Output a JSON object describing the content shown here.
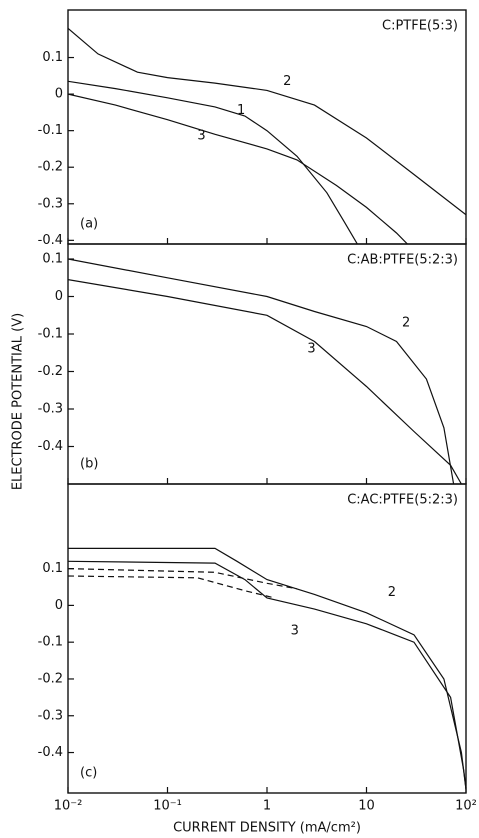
{
  "chart_data": [
    {
      "type": "line",
      "title": "C:PTFE(5:3)",
      "panel_label": "(a)",
      "xlim": [
        0.01,
        100
      ],
      "xscale": "log",
      "ylim": [
        -0.41,
        0.23
      ],
      "yticks": [
        0.1,
        0,
        -0.1,
        -0.2,
        -0.3,
        -0.4
      ],
      "series": [
        {
          "name": "1",
          "color": "#111111",
          "style": "solid",
          "x": [
            0.01,
            0.03,
            0.1,
            0.3,
            0.6,
            1,
            2,
            4,
            6,
            8.5
          ],
          "values": [
            0.035,
            0.015,
            -0.01,
            -0.035,
            -0.06,
            -0.1,
            -0.17,
            -0.27,
            -0.35,
            -0.42
          ]
        },
        {
          "name": "2",
          "color": "#111111",
          "style": "solid",
          "x": [
            0.01,
            0.02,
            0.05,
            0.1,
            0.3,
            1,
            3,
            10,
            30,
            100
          ],
          "values": [
            0.18,
            0.11,
            0.06,
            0.045,
            0.03,
            0.01,
            -0.03,
            -0.12,
            -0.22,
            -0.33
          ]
        },
        {
          "name": "3",
          "color": "#111111",
          "style": "solid",
          "x": [
            0.01,
            0.03,
            0.1,
            0.3,
            1,
            2,
            5,
            10,
            20,
            28
          ],
          "values": [
            0.0,
            -0.03,
            -0.07,
            -0.11,
            -0.15,
            -0.18,
            -0.25,
            -0.31,
            -0.38,
            -0.42
          ]
        }
      ]
    },
    {
      "type": "line",
      "title": "C:AB:PTFE(5:2:3)",
      "panel_label": "(b)",
      "xlim": [
        0.01,
        100
      ],
      "xscale": "log",
      "ylim": [
        -0.5,
        0.14
      ],
      "yticks": [
        0.1,
        0,
        -0.1,
        -0.2,
        -0.3,
        -0.4
      ],
      "series": [
        {
          "name": "2",
          "color": "#111111",
          "style": "solid",
          "x": [
            0.01,
            0.1,
            1,
            3,
            10,
            20,
            40,
            60,
            75
          ],
          "values": [
            0.1,
            0.05,
            0.0,
            -0.04,
            -0.08,
            -0.12,
            -0.22,
            -0.35,
            -0.5
          ]
        },
        {
          "name": "3",
          "color": "#111111",
          "style": "solid",
          "x": [
            0.01,
            0.1,
            1,
            3,
            10,
            30,
            70,
            90
          ],
          "values": [
            0.045,
            0.0,
            -0.05,
            -0.12,
            -0.24,
            -0.36,
            -0.45,
            -0.5
          ]
        }
      ]
    },
    {
      "type": "line",
      "title": "C:AC:PTFE(5:2:3)",
      "panel_label": "(c)",
      "xlabel": "CURRENT DENSITY (mA/cm²)",
      "ylabel": "ELECTRODE POTENTIAL (V)",
      "xlim": [
        0.01,
        100
      ],
      "xscale": "log",
      "ylim": [
        -0.51,
        0.33
      ],
      "xticks": [
        {
          "value": 0.01,
          "label": "10⁻²"
        },
        {
          "value": 0.1,
          "label": "10⁻¹"
        },
        1,
        10,
        {
          "value": 100,
          "label": "10²"
        }
      ],
      "yticks": [
        0.1,
        0,
        -0.1,
        -0.2,
        -0.3,
        -0.4
      ],
      "series": [
        {
          "name": "2",
          "color": "#111111",
          "style": "solid",
          "x": [
            0.01,
            0.3,
            0.5,
            1,
            3,
            10,
            30,
            60,
            90,
            100
          ],
          "values": [
            0.155,
            0.155,
            0.12,
            0.07,
            0.03,
            -0.02,
            -0.08,
            -0.2,
            -0.4,
            -0.5
          ]
        },
        {
          "name": "3",
          "color": "#111111",
          "style": "solid",
          "x": [
            0.01,
            0.3,
            0.6,
            1,
            3,
            10,
            30,
            70,
            95,
            100
          ],
          "values": [
            0.12,
            0.115,
            0.07,
            0.02,
            -0.01,
            -0.05,
            -0.1,
            -0.25,
            -0.45,
            -0.5
          ]
        },
        {
          "color": "#111111",
          "style": "dashed",
          "x": [
            0.01,
            0.3,
            1,
            2
          ],
          "values": [
            0.1,
            0.09,
            0.06,
            0.045
          ]
        },
        {
          "color": "#111111",
          "style": "dashed",
          "x": [
            0.01,
            0.2,
            0.6,
            1.2
          ],
          "values": [
            0.08,
            0.075,
            0.04,
            0.02
          ]
        }
      ]
    }
  ]
}
